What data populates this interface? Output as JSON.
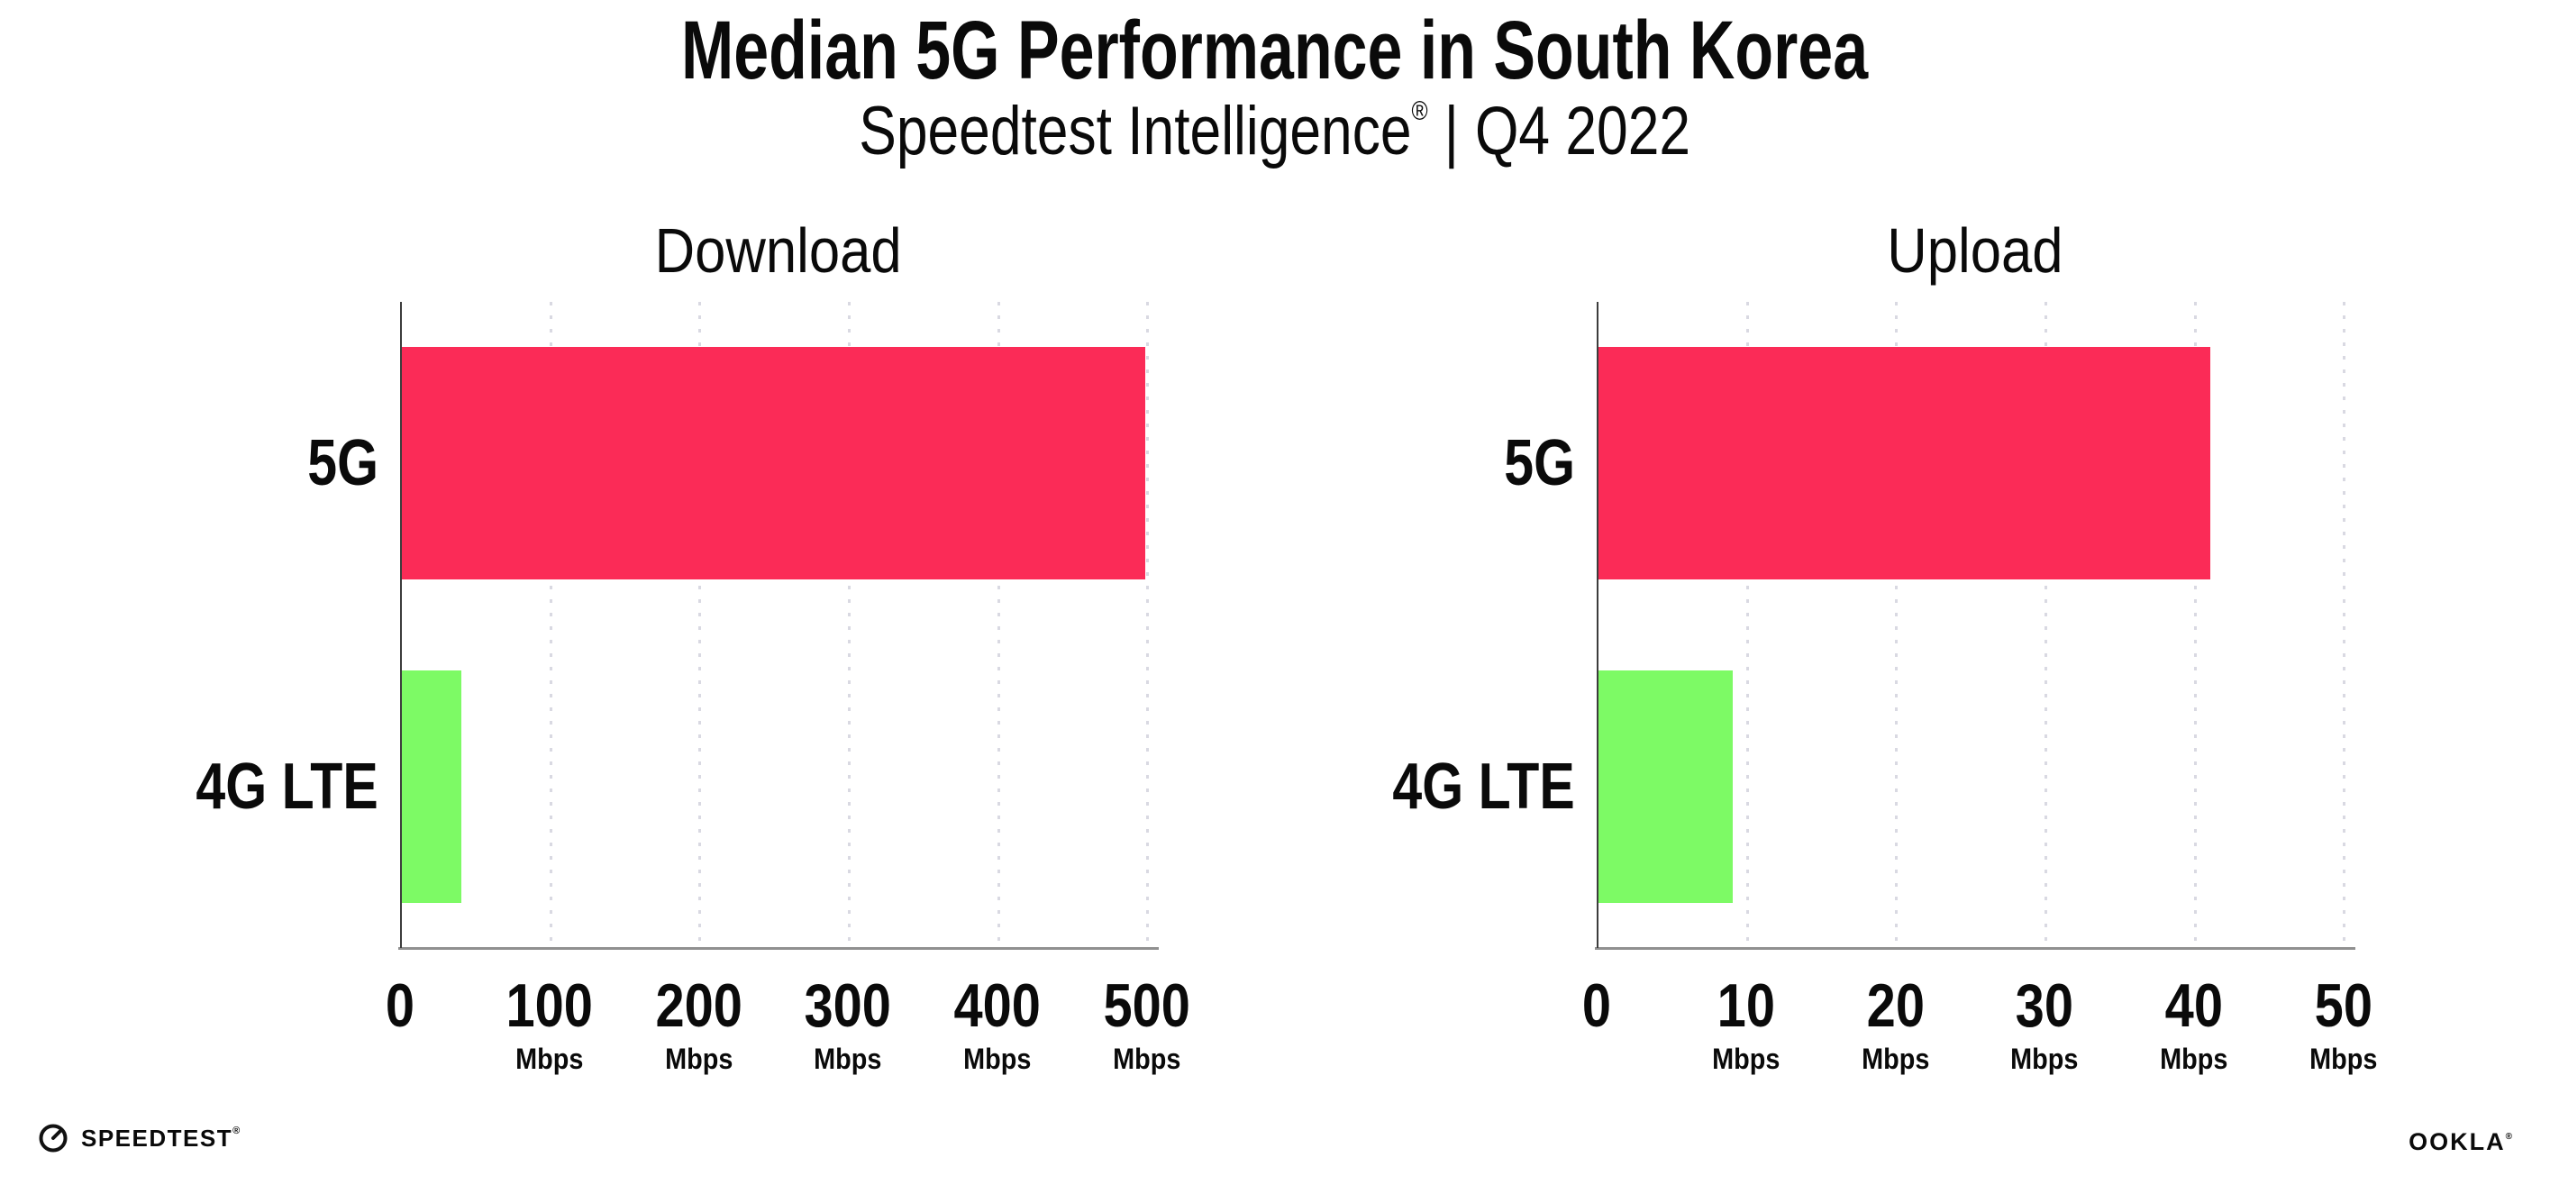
{
  "header": {
    "title": "Median 5G Performance in South Korea",
    "subtitle": {
      "brand": "Speedtest Intelligence",
      "reg": "®",
      "divider": "|",
      "period": "Q4 2022"
    }
  },
  "chart_data": [
    {
      "type": "bar",
      "orientation": "horizontal",
      "title": "Download",
      "categories": [
        "5G",
        "4G LTE"
      ],
      "values": [
        498,
        40
      ],
      "unit": "Mbps",
      "xticks": [
        0,
        100,
        200,
        300,
        400,
        500
      ],
      "xlim": [
        0,
        507
      ],
      "bar_colors": [
        "#FB2B57",
        "#7DFA65"
      ],
      "grid": "vertical-dotted",
      "legend": "none"
    },
    {
      "type": "bar",
      "orientation": "horizontal",
      "title": "Upload",
      "categories": [
        "5G",
        "4G LTE"
      ],
      "values": [
        41,
        9
      ],
      "unit": "Mbps",
      "xticks": [
        0,
        10,
        20,
        30,
        40,
        50
      ],
      "xlim": [
        0,
        50.7
      ],
      "bar_colors": [
        "#FB2B57",
        "#7DFA65"
      ],
      "grid": "vertical-dotted",
      "legend": "none"
    }
  ],
  "footer": {
    "speedtest": {
      "label": "SPEEDTEST",
      "reg": "®",
      "icon": "speedometer-icon"
    },
    "ookla": {
      "label": "OOKLA",
      "reg": "®"
    }
  },
  "colors": {
    "bar_5g": "#FB2B57",
    "bar_4g_lte": "#7DFA65",
    "y_axis_line": "#3c3c3c",
    "x_axis_line": "#909090",
    "gridline_dot": "#d9d9e2",
    "text": "#0a0a0a",
    "background": "#ffffff"
  }
}
